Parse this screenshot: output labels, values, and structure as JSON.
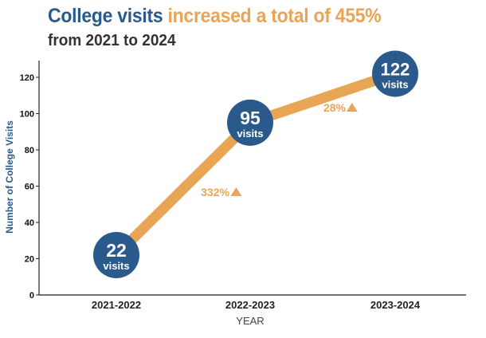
{
  "title": {
    "part1": "College visits",
    "part2": " increased a total of 455%",
    "subtitle": "from 2021 to 2024"
  },
  "colors": {
    "blue": "#2a5a8c",
    "orange": "#e8a556"
  },
  "chart_data": {
    "type": "line",
    "categories": [
      "2021-2022",
      "2022-2023",
      "2023-2024"
    ],
    "series": [
      {
        "values": [
          22,
          95,
          122
        ]
      }
    ],
    "point_labels": [
      {
        "value": "22",
        "unit": "visits"
      },
      {
        "value": "95",
        "unit": "visits"
      },
      {
        "value": "122",
        "unit": "visits"
      }
    ],
    "annotations": [
      {
        "text": "332%",
        "marker": "up-triangle"
      },
      {
        "text": "28%",
        "marker": "up-triangle"
      }
    ],
    "xlabel": "YEAR",
    "ylabel": "Number of College Visits",
    "ylim": [
      0,
      130
    ],
    "yticks": [
      0,
      20,
      40,
      60,
      80,
      100,
      120
    ],
    "grid": false,
    "legend": "none"
  }
}
